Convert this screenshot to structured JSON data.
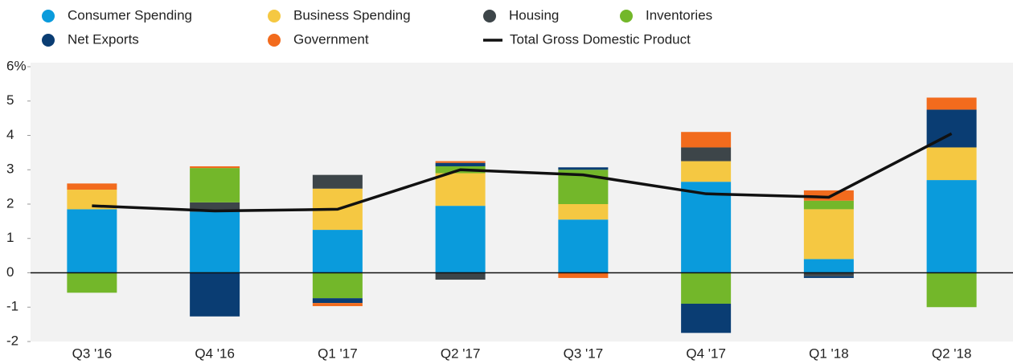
{
  "chart_data": {
    "type": "stacked-bar-line",
    "categories": [
      "Q3 '16",
      "Q4 '16",
      "Q1 '17",
      "Q2 '17",
      "Q3 '17",
      "Q4 '17",
      "Q1 '18",
      "Q2 '18"
    ],
    "series": [
      {
        "name": "Consumer Spending",
        "color": "#0a9bdc",
        "values": [
          1.85,
          1.78,
          1.25,
          1.95,
          1.55,
          2.65,
          0.4,
          2.7
        ]
      },
      {
        "name": "Business Spending",
        "color": "#f5c842",
        "values": [
          0.57,
          0,
          1.2,
          0.95,
          0.45,
          0.6,
          1.45,
          0.95
        ]
      },
      {
        "name": "Housing",
        "color": "#3d4549",
        "values": [
          0,
          0.27,
          0.4,
          -0.2,
          0,
          0.4,
          -0.1,
          0
        ]
      },
      {
        "name": "Inventories",
        "color": "#73b72a",
        "values": [
          -0.58,
          1.0,
          -0.74,
          0.2,
          1.0,
          -0.9,
          0.25,
          -1.0
        ]
      },
      {
        "name": "Net Exports",
        "color": "#0a3d73",
        "values": [
          0,
          -1.27,
          -0.14,
          0.1,
          0.07,
          -0.85,
          -0.05,
          1.1
        ]
      },
      {
        "name": "Government",
        "color": "#f26b1d",
        "values": [
          0.18,
          0.05,
          -0.09,
          0.05,
          -0.15,
          0.45,
          0.3,
          0.35
        ]
      }
    ],
    "line": {
      "name": "Total Gross Domestic Product",
      "color": "#111111",
      "values": [
        1.95,
        1.8,
        1.85,
        3.0,
        2.85,
        2.3,
        2.2,
        4.05
      ]
    },
    "ylim": [
      -2,
      6
    ],
    "yticks": [
      -2,
      -1,
      0,
      1,
      2,
      3,
      4,
      5,
      {
        "value": 6,
        "label": "6%"
      }
    ],
    "background": "#f2f2f2"
  }
}
